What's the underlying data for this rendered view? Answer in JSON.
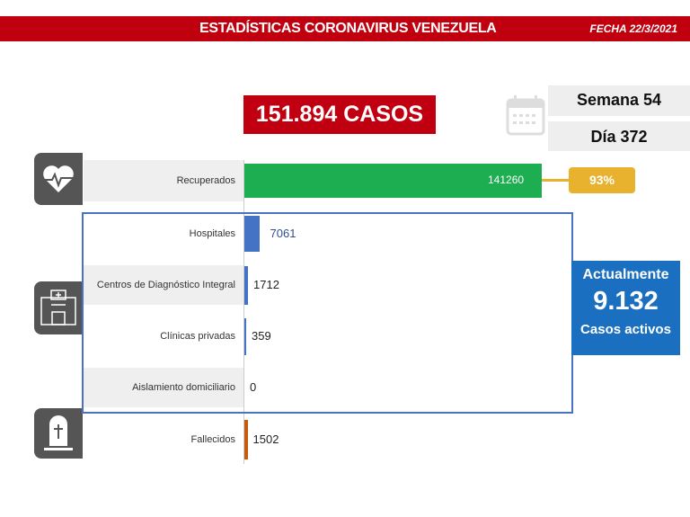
{
  "header": {
    "title": "ESTADÍSTICAS CORONAVIRUS VENEZUELA",
    "date": "FECHA 22/3/2021"
  },
  "total_cases": "151.894 CASOS",
  "week": "Semana 54",
  "day": "Día 372",
  "recovered_percent": "93%",
  "active": {
    "label_top": "Actualmente",
    "value": "9.132",
    "label_bottom": "Casos activos"
  },
  "colors": {
    "header": "#c0000f",
    "recovered": "#1eae52",
    "active": "#4472c4",
    "deceased": "#c55a11",
    "percent": "#e8b22f"
  },
  "chart_data": {
    "type": "bar",
    "orientation": "horizontal",
    "categories": [
      "Recuperados",
      "Hospitales",
      "Centros de Diagnóstico Integral",
      "Clínicas privadas",
      "Aislamiento domiciliario",
      "Fallecidos"
    ],
    "values": [
      141260,
      7061,
      1712,
      359,
      0,
      1502
    ],
    "labels": [
      "141260",
      "7061",
      "1712",
      "359",
      "0",
      "1502"
    ]
  }
}
